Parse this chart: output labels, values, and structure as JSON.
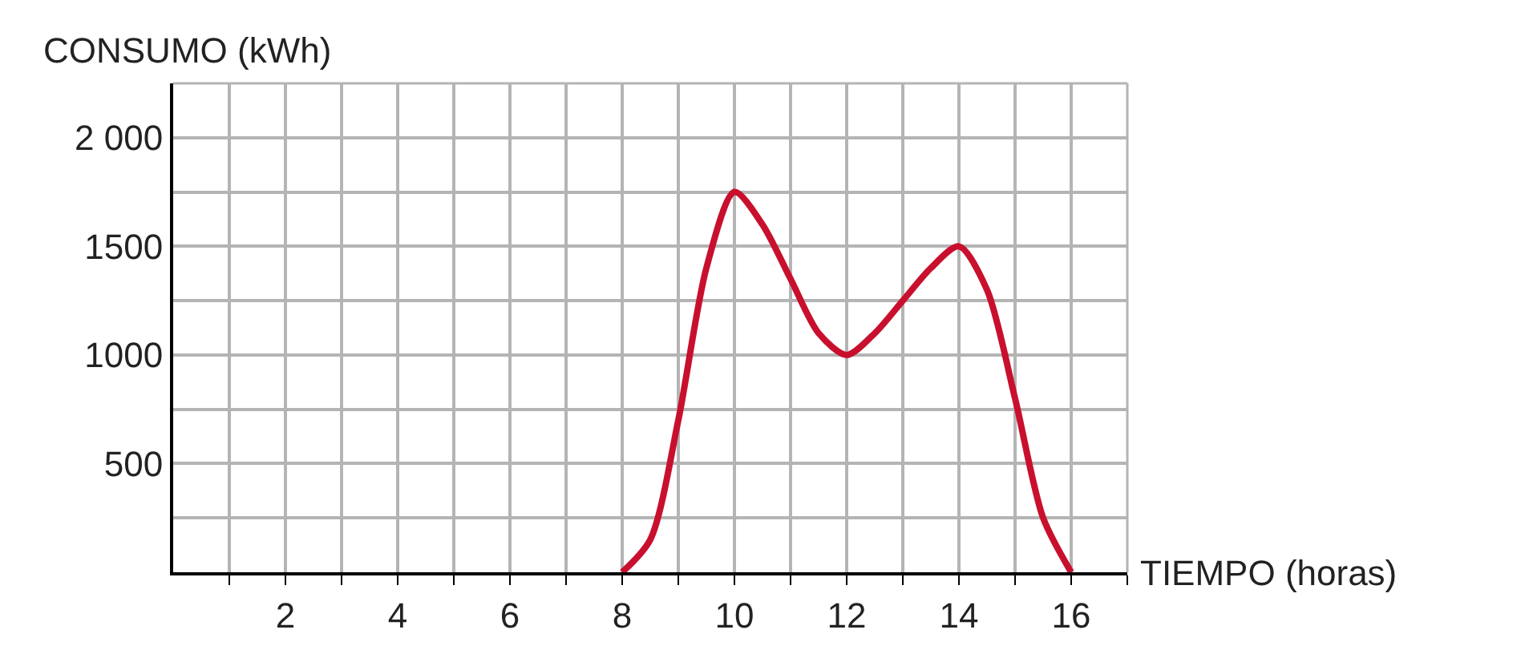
{
  "chart_data": {
    "type": "line",
    "xlabel": "TIEMPO (horas)",
    "ylabel": "CONSUMO (kWh)",
    "x": [
      8,
      8.5,
      9,
      9.5,
      10,
      10.5,
      11,
      11.5,
      12,
      12.5,
      13,
      13.5,
      14,
      14.5,
      15,
      15.5,
      16
    ],
    "series": [
      {
        "color": "#c8102e",
        "values": [
          0,
          150,
          700,
          1400,
          1750,
          1600,
          1350,
          1100,
          1000,
          1100,
          1250,
          1400,
          1500,
          1300,
          800,
          250,
          0
        ]
      }
    ],
    "xlim": [
      0,
      17
    ],
    "ylim": [
      0,
      2250
    ],
    "xticks": [
      {
        "value": 1,
        "label": null
      },
      2,
      {
        "value": 3,
        "label": null
      },
      4,
      {
        "value": 5,
        "label": null
      },
      6,
      {
        "value": 7,
        "label": null
      },
      8,
      {
        "value": 9,
        "label": null
      },
      10,
      {
        "value": 11,
        "label": null
      },
      12,
      {
        "value": 13,
        "label": null
      },
      14,
      {
        "value": 15,
        "label": null
      },
      16,
      {
        "value": 17,
        "label": null
      }
    ],
    "yticks": [
      {
        "value": 250,
        "label": null
      },
      500,
      {
        "value": 750,
        "label": null
      },
      1000,
      {
        "value": 1250,
        "label": null
      },
      1500,
      {
        "value": 1750,
        "label": null
      },
      {
        "value": 2000,
        "label": "2 000"
      },
      {
        "value": 2250,
        "label": null
      }
    ],
    "grid": true,
    "marker": "none",
    "line_style": "solid",
    "legend": false
  }
}
